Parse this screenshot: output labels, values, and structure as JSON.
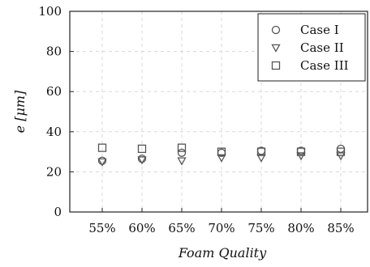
{
  "chart_data": {
    "type": "scatter",
    "xlabel": "Foam Quality",
    "ylabel": "e [μm]",
    "categories": [
      "55%",
      "60%",
      "65%",
      "70%",
      "75%",
      "80%",
      "85%"
    ],
    "ylim": [
      0,
      100
    ],
    "yticks": [
      0,
      20,
      40,
      60,
      80,
      100
    ],
    "grid": true,
    "legend_position": "top-right",
    "series": [
      {
        "name": "Case I",
        "marker": "circle",
        "values": [
          25.5,
          26.5,
          29.5,
          29.5,
          30.5,
          30.5,
          31.5
        ]
      },
      {
        "name": "Case II",
        "marker": "triangle-down",
        "values": [
          25,
          26,
          25.5,
          27,
          27,
          28,
          28
        ]
      },
      {
        "name": "Case III",
        "marker": "square",
        "values": [
          32,
          31.5,
          32,
          30,
          30,
          30,
          30
        ]
      }
    ],
    "colors": {
      "marker": "#555555",
      "grid": "#d8d8d8",
      "axis": "#222222"
    }
  }
}
